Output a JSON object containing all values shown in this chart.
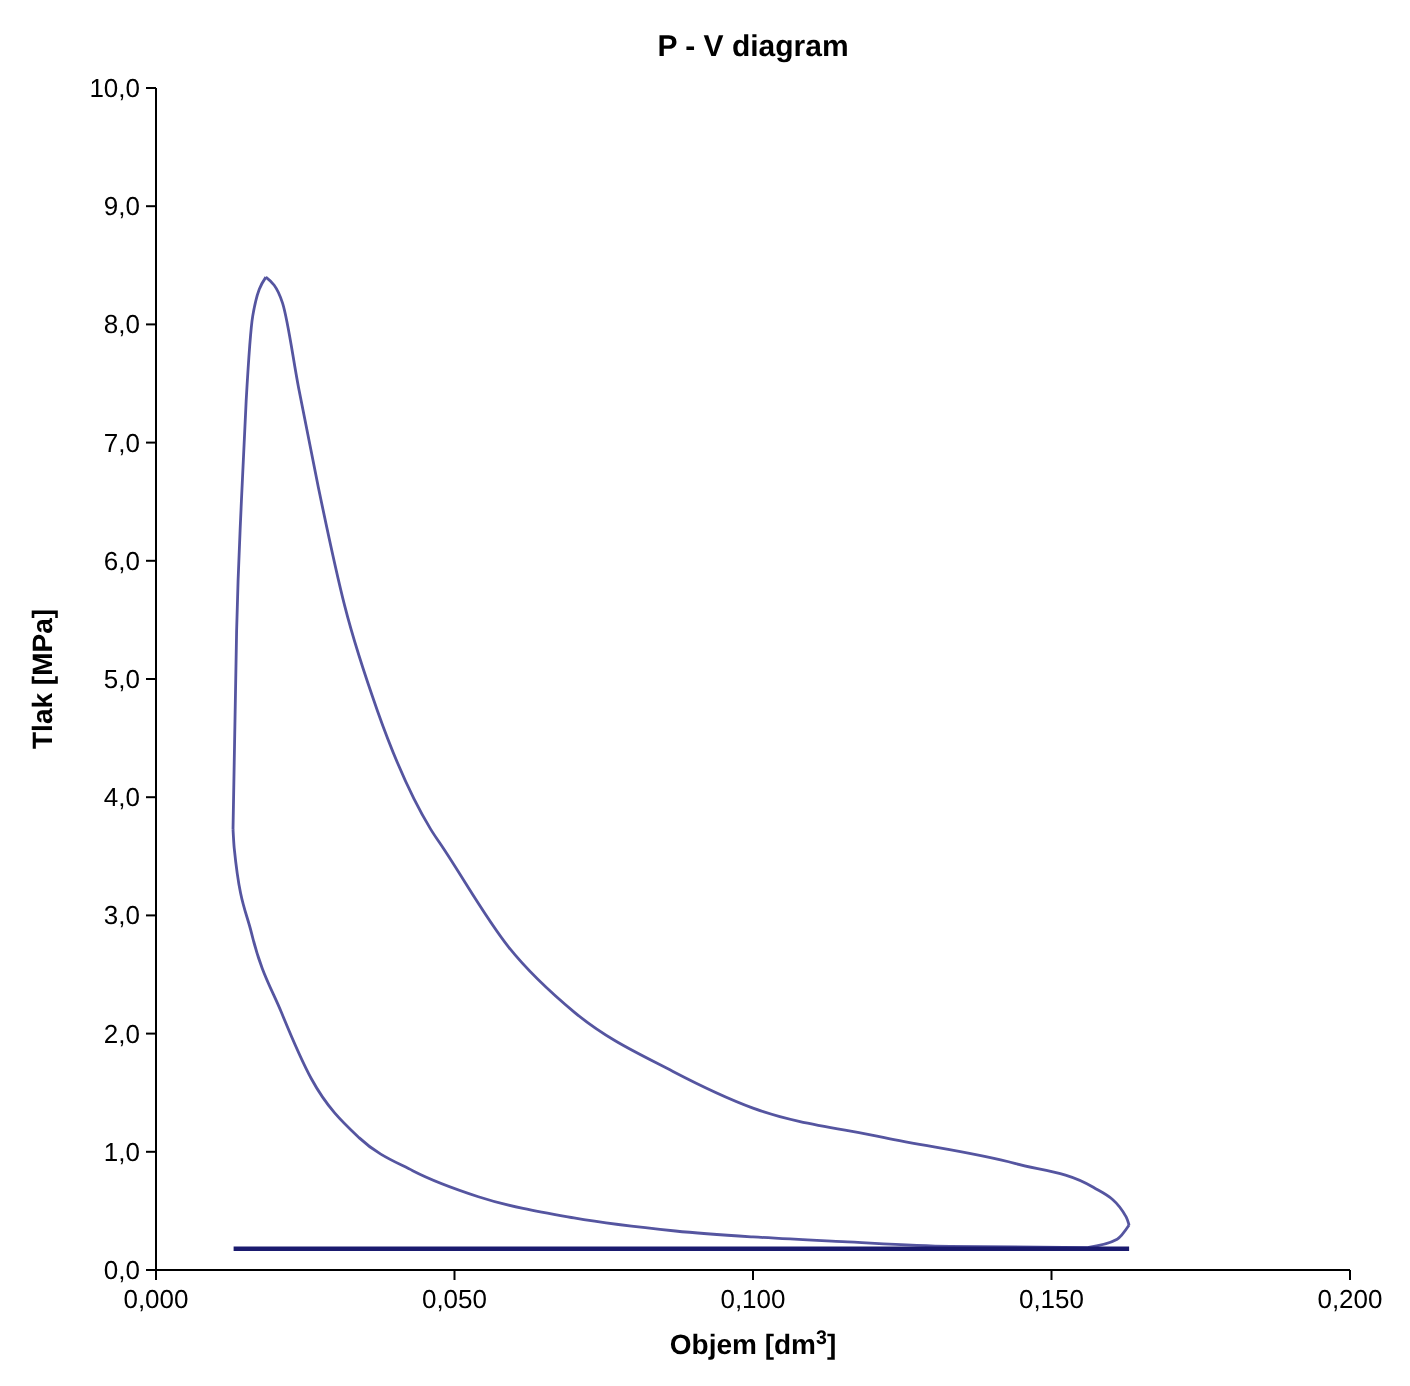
{
  "chart_data": {
    "type": "line",
    "title": "P - V diagram",
    "xlabel": "Objem [dm$^{3}$]",
    "ylabel": "Tlak [MPa]",
    "xlim": [
      0,
      0.2
    ],
    "xticks": [
      {
        "value": 0,
        "label": "0,000"
      },
      {
        "value": 0.05,
        "label": "0,050"
      },
      {
        "value": 0.1,
        "label": "0,100"
      },
      {
        "value": 0.15,
        "label": "0,150"
      },
      {
        "value": 0.2,
        "label": "0,200"
      }
    ],
    "ylim": [
      0,
      10
    ],
    "yticks": [
      {
        "value": 0,
        "label": "0,0"
      },
      {
        "value": 1,
        "label": "1,0"
      },
      {
        "value": 2,
        "label": "2,0"
      },
      {
        "value": 3,
        "label": "3,0"
      },
      {
        "value": 4,
        "label": "4,0"
      },
      {
        "value": 5,
        "label": "5,0"
      },
      {
        "value": 6,
        "label": "6,0"
      },
      {
        "value": 7,
        "label": "7,0"
      },
      {
        "value": 8,
        "label": "8,0"
      },
      {
        "value": 9,
        "label": "9,0"
      },
      {
        "value": 10,
        "label": "10,0"
      }
    ],
    "grid": false,
    "marker": "none",
    "line_style": "solid",
    "series": [
      {
        "color": "#5555a0",
        "x": [
          0.0129,
          0.0131,
          0.016,
          0.021,
          0.026,
          0.034,
          0.043,
          0.054,
          0.07,
          0.087,
          0.1,
          0.115,
          0.133,
          0.156
        ],
        "values": [
          3.73,
          3.57,
          2.85,
          2.18,
          1.62,
          1.12,
          0.84,
          0.62,
          0.44,
          0.33,
          0.28,
          0.24,
          0.2,
          0.19
        ]
      },
      {
        "color": "#5555a0",
        "x": [
          0.0129,
          0.0135,
          0.0143,
          0.0151,
          0.0162,
          0.0184
        ],
        "values": [
          3.73,
          5.4,
          6.5,
          7.35,
          8.07,
          8.4
        ]
      },
      {
        "color": "#5555a0",
        "x": [
          0.0184,
          0.0212,
          0.0239,
          0.0272,
          0.0316,
          0.0371,
          0.046,
          0.0481,
          0.0591,
          0.0701,
          0.0866,
          0.1,
          0.122,
          0.144,
          0.157,
          0.1625,
          0.163
        ],
        "values": [
          8.4,
          8.18,
          7.46,
          6.62,
          5.62,
          4.73,
          3.73,
          3.57,
          2.73,
          2.18,
          1.68,
          1.37,
          1.12,
          0.9,
          0.7,
          0.45,
          0.38
        ]
      },
      {
        "color": "#5555a0",
        "x": [
          0.156,
          0.161,
          0.163
        ],
        "values": [
          0.19,
          0.26,
          0.38
        ]
      },
      {
        "color": "#1a1a6e",
        "x": [
          0.013,
          0.163
        ],
        "values": [
          0.18,
          0.18
        ]
      }
    ]
  }
}
